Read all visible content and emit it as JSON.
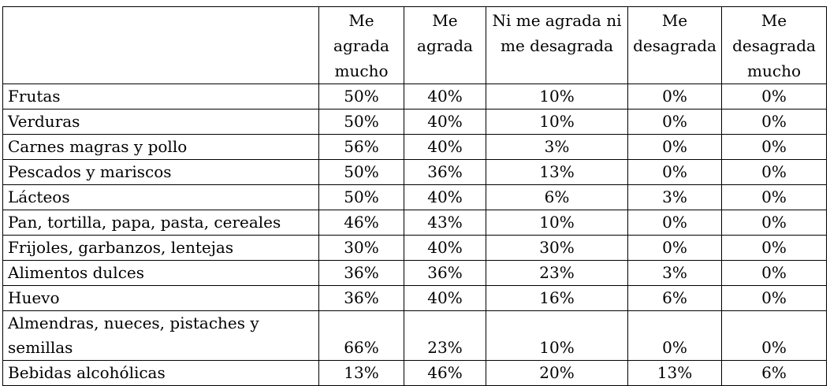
{
  "table": {
    "headers": [
      "",
      "Me\nagrada\nmucho",
      "Me\nagrada",
      "Ni me agrada ni\nme desagrada",
      "Me\ndesagrada",
      "Me\ndesagrada\nmucho"
    ],
    "rows": [
      {
        "label": "Frutas",
        "values": [
          "50%",
          "40%",
          "10%",
          "0%",
          "0%"
        ]
      },
      {
        "label": "Verduras",
        "values": [
          "50%",
          "40%",
          "10%",
          "0%",
          "0%"
        ]
      },
      {
        "label": "Carnes magras y pollo",
        "values": [
          "56%",
          "40%",
          "3%",
          "0%",
          "0%"
        ]
      },
      {
        "label": "Pescados y mariscos",
        "values": [
          "50%",
          "36%",
          "13%",
          "0%",
          "0%"
        ]
      },
      {
        "label": "Lácteos",
        "values": [
          "50%",
          "40%",
          "6%",
          "3%",
          "0%"
        ]
      },
      {
        "label": "Pan, tortilla, papa, pasta, cereales",
        "values": [
          "46%",
          "43%",
          "10%",
          "0%",
          "0%"
        ]
      },
      {
        "label": "Frijoles, garbanzos, lentejas",
        "values": [
          "30%",
          "40%",
          "30%",
          "0%",
          "0%"
        ]
      },
      {
        "label": "Alimentos dulces",
        "values": [
          "36%",
          "36%",
          "23%",
          "3%",
          "0%"
        ]
      },
      {
        "label": "Huevo",
        "values": [
          "36%",
          "40%",
          "16%",
          "6%",
          "0%"
        ]
      },
      {
        "label": "Almendras, nueces, pistaches y\nsemillas",
        "values": [
          "66%",
          "23%",
          "10%",
          "0%",
          "0%"
        ]
      },
      {
        "label": "Bebidas alcohólicas",
        "values": [
          "13%",
          "46%",
          "20%",
          "13%",
          "6%"
        ]
      }
    ]
  }
}
